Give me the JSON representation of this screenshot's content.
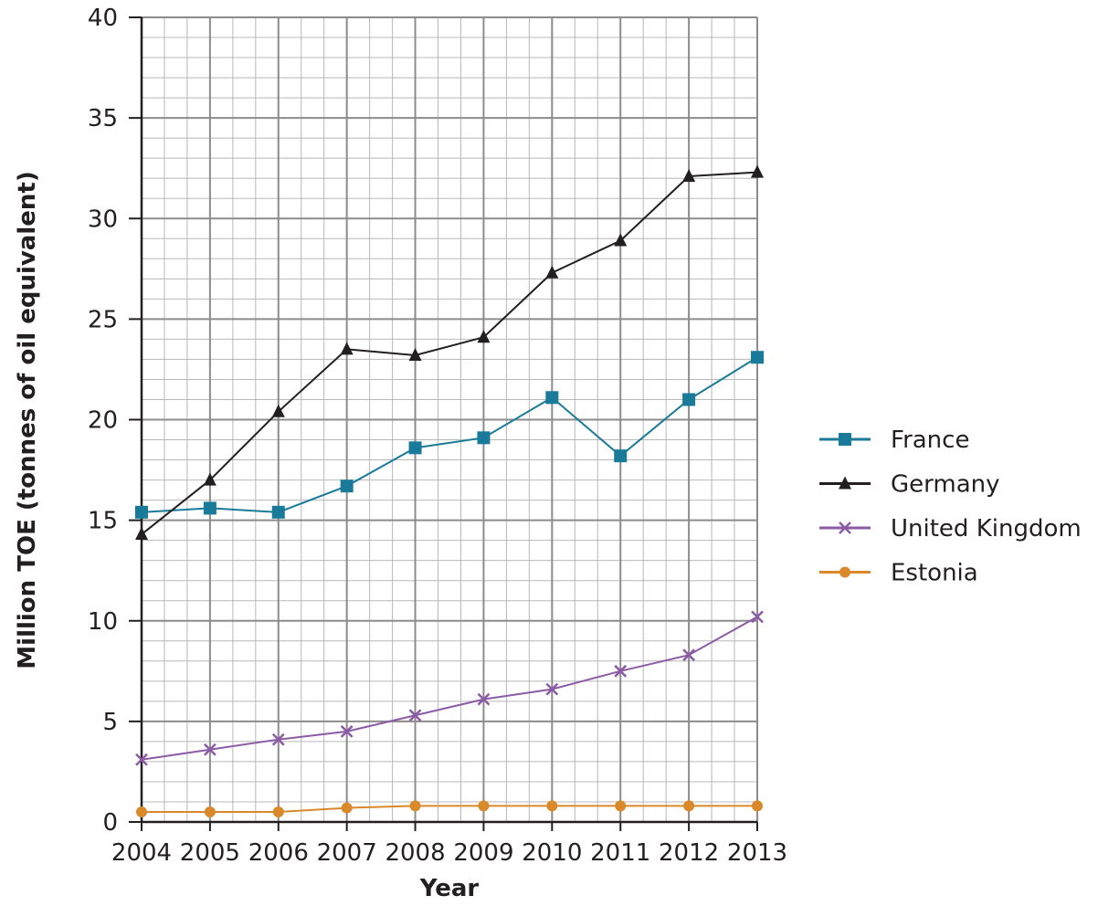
{
  "chart_data": {
    "type": "line",
    "title": "",
    "xlabel": "Year",
    "ylabel": "Million TOE (tonnes of oil equivalent)",
    "x": [
      "2004",
      "2005",
      "2006",
      "2007",
      "2008",
      "2009",
      "2010",
      "2011",
      "2012",
      "2013"
    ],
    "ylim": [
      0,
      40
    ],
    "yticks": [
      0,
      5,
      10,
      15,
      20,
      25,
      30,
      35,
      40
    ],
    "minor_grid_step": 1,
    "grid": true,
    "legend_position": "right",
    "series": [
      {
        "name": "France",
        "color": "#1a7a9a",
        "marker": "square",
        "values": [
          15.4,
          15.6,
          15.4,
          16.7,
          18.6,
          19.1,
          21.1,
          18.2,
          21.0,
          23.1
        ]
      },
      {
        "name": "Germany",
        "color": "#231f20",
        "marker": "triangle",
        "values": [
          14.3,
          17.0,
          20.4,
          23.5,
          23.2,
          24.1,
          27.3,
          28.9,
          32.1,
          32.3
        ]
      },
      {
        "name": "United Kingdom",
        "color": "#8b5ba6",
        "marker": "cross",
        "values": [
          3.1,
          3.6,
          4.1,
          4.5,
          5.3,
          6.1,
          6.6,
          7.5,
          8.3,
          10.2
        ]
      },
      {
        "name": "Estonia",
        "color": "#d9892a",
        "marker": "circle",
        "values": [
          0.5,
          0.5,
          0.5,
          0.7,
          0.8,
          0.8,
          0.8,
          0.8,
          0.8,
          0.8
        ]
      }
    ]
  }
}
